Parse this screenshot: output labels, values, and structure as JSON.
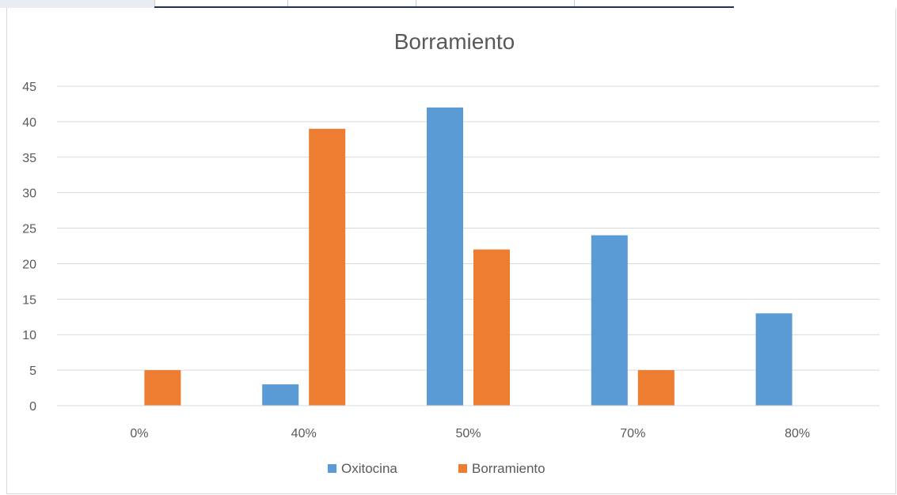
{
  "chart_data": {
    "type": "bar",
    "title": "Borramiento",
    "categories": [
      "0%",
      "40%",
      "50%",
      "70%",
      "80%"
    ],
    "series": [
      {
        "name": "Oxitocina",
        "color": "#5b9bd5",
        "values": [
          0,
          3,
          42,
          24,
          13
        ]
      },
      {
        "name": "Borramiento",
        "color": "#ed7d31",
        "values": [
          5,
          39,
          22,
          5,
          0
        ]
      }
    ],
    "ylim": [
      0,
      45
    ],
    "yticks": [
      "0",
      "5",
      "10",
      "15",
      "20",
      "25",
      "30",
      "35",
      "40",
      "45"
    ],
    "grid": true,
    "legend_position": "bottom"
  }
}
